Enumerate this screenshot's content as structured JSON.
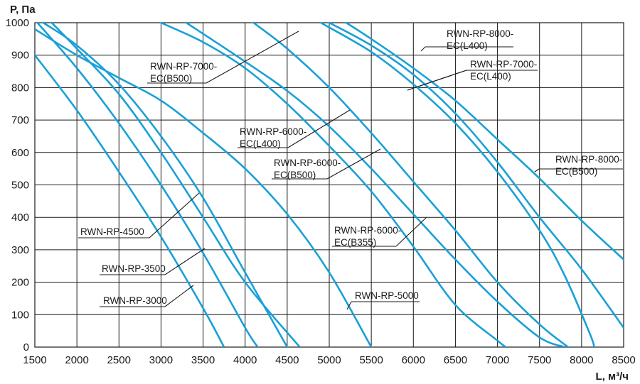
{
  "chart_data": {
    "type": "line",
    "ylabel": "P, Па",
    "xlabel": "L, м³/ч",
    "xlim": [
      1500,
      8500
    ],
    "ylim": [
      0,
      1000
    ],
    "x_ticks": [
      1500,
      2000,
      2500,
      3000,
      3500,
      4000,
      4500,
      5000,
      5500,
      6000,
      6500,
      7000,
      7500,
      8000,
      8500
    ],
    "y_ticks": [
      0,
      100,
      200,
      300,
      400,
      500,
      600,
      700,
      800,
      900,
      1000
    ],
    "grid": true,
    "line_color": "#1aa0d8",
    "series": [
      {
        "name": "RWN-RP-3000",
        "points": [
          [
            1500,
            900
          ],
          [
            2000,
            730
          ],
          [
            2500,
            540
          ],
          [
            3000,
            340
          ],
          [
            3500,
            120
          ],
          [
            3750,
            0
          ]
        ]
      },
      {
        "name": "RWN-RP-3500",
        "points": [
          [
            1530,
            1000
          ],
          [
            2000,
            860
          ],
          [
            2500,
            690
          ],
          [
            3000,
            500
          ],
          [
            3500,
            290
          ],
          [
            4000,
            60
          ],
          [
            4150,
            0
          ]
        ]
      },
      {
        "name": "RWN-RP-4500",
        "points": [
          [
            1600,
            1000
          ],
          [
            2000,
            930
          ],
          [
            2500,
            810
          ],
          [
            3000,
            650
          ],
          [
            3500,
            460
          ],
          [
            4000,
            230
          ],
          [
            4500,
            0
          ]
        ]
      },
      {
        "name": "RWN-RP-5000",
        "points": [
          [
            1500,
            980
          ],
          [
            2000,
            900
          ],
          [
            2500,
            830
          ],
          [
            3000,
            760
          ],
          [
            3500,
            660
          ],
          [
            4000,
            550
          ],
          [
            4500,
            410
          ],
          [
            5000,
            230
          ],
          [
            5500,
            0
          ]
        ]
      },
      {
        "name": "RWN-RP-7000-EC(B500)",
        "points": [
          [
            1700,
            1000
          ],
          [
            2000,
            920
          ],
          [
            2500,
            780
          ],
          [
            3000,
            600
          ],
          [
            3500,
            400
          ],
          [
            4000,
            200
          ],
          [
            4650,
            0
          ]
        ]
      },
      {
        "name": "RWN-RP-6000-EC(L400)",
        "points": [
          [
            3000,
            1000
          ],
          [
            3500,
            940
          ],
          [
            4000,
            860
          ],
          [
            4500,
            750
          ],
          [
            5000,
            620
          ],
          [
            5500,
            480
          ],
          [
            6000,
            310
          ],
          [
            6500,
            130
          ],
          [
            7000,
            20
          ],
          [
            7100,
            0
          ]
        ]
      },
      {
        "name": "RWN-RP-6000-EC(B500)",
        "points": [
          [
            3300,
            1000
          ],
          [
            4000,
            880
          ],
          [
            4500,
            790
          ],
          [
            5000,
            680
          ],
          [
            5500,
            550
          ],
          [
            6000,
            410
          ],
          [
            6500,
            270
          ],
          [
            7000,
            140
          ],
          [
            7500,
            30
          ],
          [
            7800,
            0
          ]
        ]
      },
      {
        "name": "RWN-RP-6000-EC(B355)",
        "points": [
          [
            4100,
            1000
          ],
          [
            4500,
            920
          ],
          [
            5000,
            800
          ],
          [
            5500,
            660
          ],
          [
            6000,
            510
          ],
          [
            6500,
            360
          ],
          [
            7000,
            200
          ],
          [
            7500,
            70
          ],
          [
            7840,
            0
          ]
        ]
      },
      {
        "name": "RWN-RP-7000-EC(L400)",
        "points": [
          [
            4900,
            1000
          ],
          [
            5500,
            910
          ],
          [
            6000,
            810
          ],
          [
            6500,
            690
          ],
          [
            7000,
            540
          ],
          [
            7500,
            360
          ],
          [
            7800,
            220
          ],
          [
            8100,
            40
          ],
          [
            8150,
            0
          ]
        ]
      },
      {
        "name": "RWN-RP-8000-EC(L400)",
        "points": [
          [
            5200,
            1000
          ],
          [
            5500,
            950
          ],
          [
            6000,
            860
          ],
          [
            6500,
            760
          ],
          [
            7000,
            640
          ],
          [
            7500,
            520
          ],
          [
            8000,
            390
          ],
          [
            8500,
            270
          ]
        ]
      },
      {
        "name": "RWN-RP-8000-EC(B500)",
        "points": [
          [
            5000,
            1000
          ],
          [
            5500,
            930
          ],
          [
            6000,
            840
          ],
          [
            6500,
            720
          ],
          [
            7000,
            570
          ],
          [
            7500,
            400
          ],
          [
            8000,
            240
          ],
          [
            8500,
            60
          ]
        ]
      }
    ],
    "annotations": [
      {
        "lines": [
          "RWN-RP-4500"
        ]
      },
      {
        "lines": [
          "RWN-RP-3500"
        ]
      },
      {
        "lines": [
          "RWN-RP-3000"
        ]
      },
      {
        "lines": [
          "RWN-RP-5000"
        ]
      },
      {
        "lines": [
          "RWN-RP-7000-",
          "EC(B500)"
        ]
      },
      {
        "lines": [
          "RWN-RP-6000-",
          "EC(L400)"
        ]
      },
      {
        "lines": [
          "RWN-RP-6000-",
          "EC(B500)"
        ]
      },
      {
        "lines": [
          "RWN-RP-6000-",
          "EC(B355)"
        ]
      },
      {
        "lines": [
          "RWN-RP-8000-",
          "EC(L400)"
        ]
      },
      {
        "lines": [
          "RWN-RP-7000-",
          "EC(L400)"
        ]
      },
      {
        "lines": [
          "RWN-RP-8000-",
          "EC(B500)"
        ]
      }
    ]
  }
}
